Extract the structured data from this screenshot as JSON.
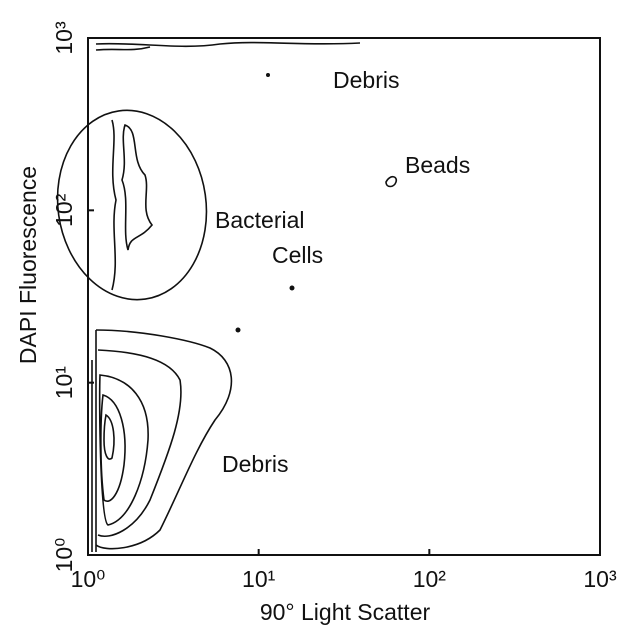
{
  "chart_data": {
    "type": "contour",
    "xlabel": "90° Light Scatter",
    "ylabel": "DAPI Fluorescence",
    "xscale": "log",
    "yscale": "log",
    "xlim": [
      1,
      1000
    ],
    "ylim": [
      1,
      1000
    ],
    "xticks": [
      {
        "value": 1,
        "label": "10⁰"
      },
      {
        "value": 10,
        "label": "10¹"
      },
      {
        "value": 100,
        "label": "10²"
      },
      {
        "value": 1000,
        "label": "10³"
      }
    ],
    "yticks": [
      {
        "value": 1,
        "label": "10⁰"
      },
      {
        "value": 10,
        "label": "10¹"
      },
      {
        "value": 100,
        "label": "10²"
      },
      {
        "value": 1000,
        "label": "10³"
      }
    ],
    "annotations": [
      "Debris",
      "Beads",
      "Bacterial",
      "Cells",
      "Debris"
    ]
  }
}
